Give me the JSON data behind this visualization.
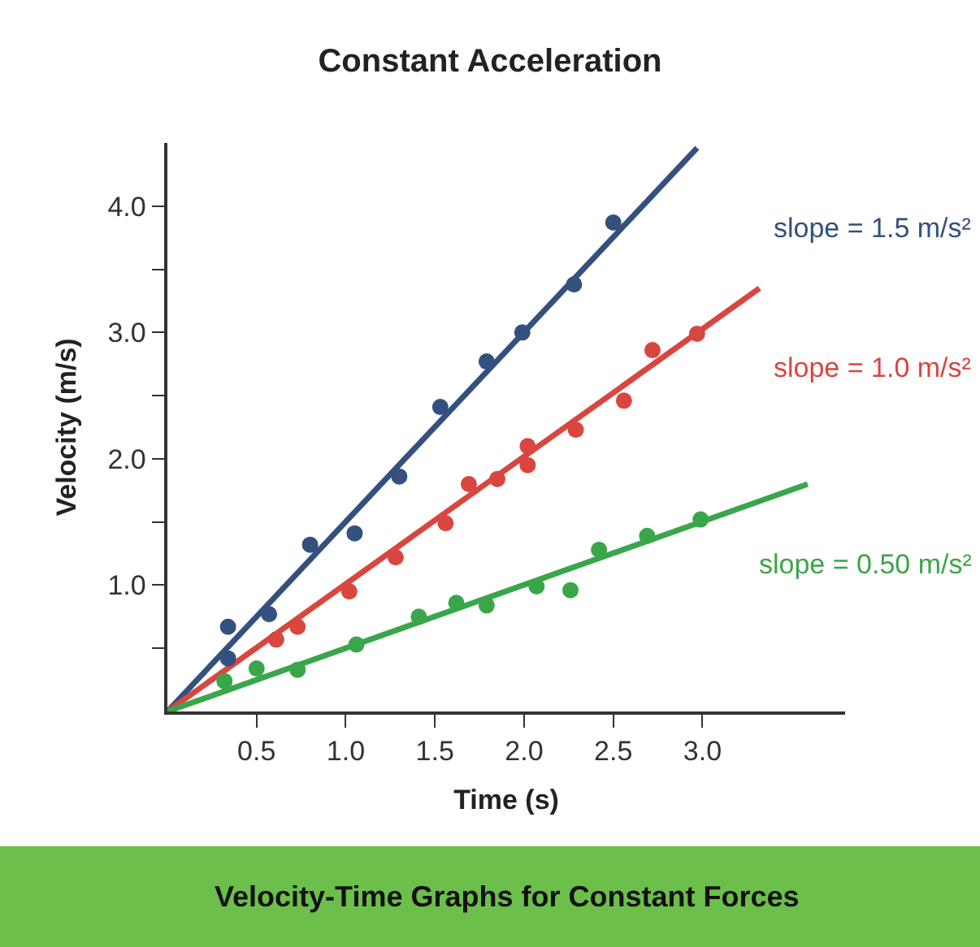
{
  "chart_data": {
    "type": "scatter",
    "title": "Constant Acceleration",
    "xlabel": "Time (s)",
    "ylabel": "Velocity (m/s)",
    "xlim": [
      0,
      3.8
    ],
    "ylim": [
      0,
      4.5
    ],
    "xticks": [
      {
        "value": 0.5,
        "label": "0.5"
      },
      {
        "value": 1.0,
        "label": "1.0"
      },
      {
        "value": 1.5,
        "label": "1.5"
      },
      {
        "value": 2.0,
        "label": "2.0"
      },
      {
        "value": 2.5,
        "label": "2.5"
      },
      {
        "value": 3.0,
        "label": "3.0"
      }
    ],
    "yticks": [
      {
        "value": 0.5,
        "label": null
      },
      {
        "value": 1.0,
        "label": "1.0"
      },
      {
        "value": 1.5,
        "label": null
      },
      {
        "value": 2.0,
        "label": "2.0"
      },
      {
        "value": 2.5,
        "label": null
      },
      {
        "value": 3.0,
        "label": "3.0"
      },
      {
        "value": 3.5,
        "label": null
      },
      {
        "value": 4.0,
        "label": "4.0"
      }
    ],
    "marker": "circle",
    "series": [
      {
        "type": "line",
        "marker": "none",
        "name": "slope = 1.5 m/s²",
        "color": "#34507f",
        "x": [
          0,
          2.97
        ],
        "values": [
          0,
          4.46
        ]
      },
      {
        "type": "line",
        "marker": "none",
        "name": "slope = 1.0 m/s²",
        "color": "#d9463f",
        "x": [
          0,
          3.32
        ],
        "values": [
          0,
          3.35
        ]
      },
      {
        "type": "line",
        "marker": "none",
        "name": "slope = 0.50 m/s²",
        "color": "#3aa64a",
        "x": [
          0,
          3.59
        ],
        "values": [
          0,
          1.8
        ]
      },
      {
        "color": "#34507f",
        "x": [
          0.34,
          0.34,
          0.57,
          0.8,
          1.05,
          1.3,
          1.53,
          1.79,
          1.99,
          2.28,
          2.5
        ],
        "values": [
          0.67,
          0.42,
          0.77,
          1.32,
          1.41,
          1.86,
          2.41,
          2.77,
          3.0,
          3.38,
          3.87
        ]
      },
      {
        "color": "#d9463f",
        "x": [
          0.61,
          0.73,
          1.02,
          1.28,
          1.56,
          1.69,
          1.85,
          2.02,
          2.02,
          2.29,
          2.56,
          2.72,
          2.97
        ],
        "values": [
          0.57,
          0.67,
          0.95,
          1.22,
          1.49,
          1.8,
          1.84,
          2.1,
          1.95,
          2.23,
          2.46,
          2.86,
          2.99
        ]
      },
      {
        "color": "#3aa64a",
        "x": [
          0.32,
          0.5,
          0.73,
          1.06,
          1.41,
          1.62,
          1.79,
          2.07,
          2.26,
          2.42,
          2.69,
          2.99
        ],
        "values": [
          0.24,
          0.34,
          0.33,
          0.53,
          0.75,
          0.86,
          0.84,
          0.99,
          0.96,
          1.28,
          1.39,
          1.52
        ]
      }
    ],
    "annotations": [
      "Velocity-Time Graphs for Constant Forces"
    ]
  }
}
